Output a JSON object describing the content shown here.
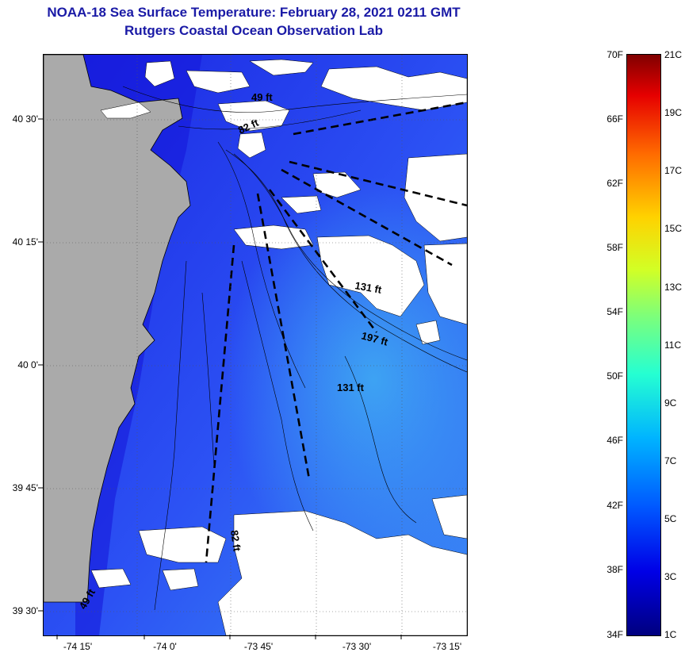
{
  "title": "NOAA-18 Sea Surface Temperature:  February 28, 2021 0211 GMT",
  "subtitle": "Rutgers Coastal Ocean Observation Lab",
  "lat_labels": [
    "40 30'",
    "40 15'",
    "40 0'",
    "39 45'",
    "39 30'"
  ],
  "lon_labels": [
    "-74 15'",
    "-74 0'",
    "-73 45'",
    "-73 30'",
    "-73 15'"
  ],
  "depth_labels": [
    "49 ft",
    "82 ft",
    "131 ft",
    "197 ft",
    "131 ft",
    "82 ft",
    "49 ft"
  ],
  "colorbar": {
    "fahrenheit": [
      "70F",
      "66F",
      "62F",
      "58F",
      "54F",
      "50F",
      "46F",
      "42F",
      "38F",
      "34F"
    ],
    "celsius": [
      "21C",
      "19C",
      "17C",
      "15C",
      "13C",
      "11C",
      "9C",
      "7C",
      "5C",
      "3C",
      "1C"
    ]
  },
  "colors": {
    "land": "#aaaaaa",
    "cloud": "#ffffff",
    "sea_dark": "#1820e0",
    "sea_mid": "#2a4ef5",
    "sea_light": "#3a8cf5",
    "title": "#1a1aa6"
  }
}
